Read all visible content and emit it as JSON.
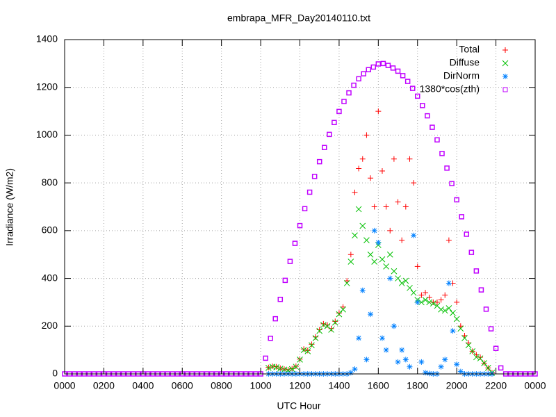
{
  "chart_data": {
    "type": "scatter",
    "title": "embrapa_MFR_Day20140110.txt",
    "xlabel": "UTC Hour",
    "ylabel": "Irradiance (W/m2)",
    "xlim": [
      0,
      24
    ],
    "xticks": [
      {
        "value": 0,
        "label": "0000"
      },
      {
        "value": 2,
        "label": "0200"
      },
      {
        "value": 4,
        "label": "0400"
      },
      {
        "value": 6,
        "label": "0600"
      },
      {
        "value": 8,
        "label": "0800"
      },
      {
        "value": 10,
        "label": "1000"
      },
      {
        "value": 12,
        "label": "1200"
      },
      {
        "value": 14,
        "label": "1400"
      },
      {
        "value": 16,
        "label": "1600"
      },
      {
        "value": 18,
        "label": "1800"
      },
      {
        "value": 20,
        "label": "2000"
      },
      {
        "value": 22,
        "label": "2200"
      },
      {
        "value": 24,
        "label": "0000"
      }
    ],
    "ylim": [
      0,
      1400
    ],
    "yticks": [
      0,
      200,
      400,
      600,
      800,
      1000,
      1200,
      1400
    ],
    "grid": true,
    "legend": "top right",
    "series": [
      {
        "name": "Total",
        "color": "#ff0000",
        "marker": "plus",
        "x": [
          10.4,
          10.6,
          10.8,
          11.0,
          11.2,
          11.4,
          11.6,
          11.8,
          12.0,
          12.2,
          12.4,
          12.6,
          12.8,
          13.0,
          13.2,
          13.4,
          13.6,
          13.8,
          14.0,
          14.2,
          14.4,
          14.6,
          14.8,
          15.0,
          15.2,
          15.4,
          15.6,
          15.8,
          16.0,
          16.2,
          16.4,
          16.6,
          16.8,
          17.0,
          17.2,
          17.4,
          17.6,
          17.8,
          18.0,
          18.2,
          18.4,
          18.6,
          18.8,
          19.0,
          19.2,
          19.4,
          19.6,
          19.8,
          20.0,
          20.2,
          20.4,
          20.6,
          20.8,
          21.0,
          21.2,
          21.4,
          21.6,
          21.8
        ],
        "values": [
          27,
          32,
          30,
          24,
          20,
          17,
          22,
          32,
          62,
          104,
          98,
          124,
          155,
          185,
          210,
          205,
          190,
          220,
          255,
          280,
          390,
          500,
          760,
          860,
          900,
          1000,
          820,
          700,
          1100,
          850,
          700,
          600,
          900,
          720,
          560,
          700,
          900,
          800,
          450,
          330,
          340,
          320,
          300,
          300,
          310,
          330,
          560,
          380,
          300,
          200,
          160,
          130,
          95,
          80,
          70,
          45,
          25,
          5
        ]
      },
      {
        "name": "Diffuse",
        "color": "#00c000",
        "marker": "cross",
        "x": [
          10.4,
          10.6,
          10.8,
          11.0,
          11.2,
          11.4,
          11.6,
          11.8,
          12.0,
          12.2,
          12.4,
          12.6,
          12.8,
          13.0,
          13.2,
          13.4,
          13.6,
          13.8,
          14.0,
          14.2,
          14.4,
          14.6,
          14.8,
          15.0,
          15.2,
          15.4,
          15.6,
          15.8,
          16.0,
          16.2,
          16.4,
          16.6,
          16.8,
          17.0,
          17.2,
          17.4,
          17.6,
          17.8,
          18.0,
          18.2,
          18.4,
          18.6,
          18.8,
          19.0,
          19.2,
          19.4,
          19.6,
          19.8,
          20.0,
          20.2,
          20.4,
          20.6,
          20.8,
          21.0,
          21.2,
          21.4,
          21.6,
          21.8
        ],
        "values": [
          25,
          30,
          28,
          22,
          18,
          15,
          20,
          30,
          60,
          100,
          95,
          120,
          150,
          180,
          205,
          200,
          185,
          215,
          250,
          270,
          380,
          470,
          580,
          690,
          620,
          560,
          500,
          470,
          540,
          480,
          450,
          500,
          430,
          400,
          380,
          390,
          360,
          340,
          310,
          300,
          310,
          300,
          295,
          285,
          270,
          265,
          275,
          255,
          230,
          190,
          150,
          120,
          95,
          70,
          65,
          45,
          25,
          5
        ]
      },
      {
        "name": "DirNorm",
        "color": "#0080ff",
        "marker": "star",
        "x": [
          10.4,
          10.6,
          10.8,
          11.0,
          11.2,
          11.4,
          11.6,
          11.8,
          12.0,
          12.2,
          12.4,
          12.6,
          12.8,
          13.0,
          13.2,
          13.4,
          13.6,
          13.8,
          14.0,
          14.2,
          14.4,
          14.6,
          14.8,
          15.0,
          15.2,
          15.4,
          15.6,
          15.8,
          16.0,
          16.2,
          16.4,
          16.6,
          16.8,
          17.0,
          17.2,
          17.4,
          17.6,
          17.8,
          18.0,
          18.2,
          18.4,
          18.6,
          18.8,
          19.0,
          19.2,
          19.4,
          19.6,
          19.8,
          20.0,
          20.2,
          20.4,
          20.6,
          20.8,
          21.0,
          21.2,
          21.4,
          21.6,
          21.8
        ],
        "values": [
          0,
          0,
          0,
          0,
          0,
          0,
          0,
          0,
          0,
          0,
          0,
          0,
          0,
          0,
          0,
          0,
          0,
          0,
          0,
          0,
          0,
          5,
          20,
          150,
          350,
          60,
          250,
          600,
          550,
          150,
          100,
          400,
          200,
          50,
          100,
          60,
          30,
          580,
          300,
          50,
          5,
          2,
          0,
          0,
          30,
          60,
          380,
          180,
          40,
          10,
          0,
          0,
          0,
          0,
          0,
          0,
          0,
          0
        ]
      },
      {
        "name": "1380*cos(zth)",
        "color": "#c000ff",
        "marker": "square",
        "x": [
          0,
          0.25,
          0.5,
          0.75,
          1,
          1.25,
          1.5,
          1.75,
          2,
          2.25,
          2.5,
          2.75,
          3,
          3.25,
          3.5,
          3.75,
          4,
          4.25,
          4.5,
          4.75,
          5,
          5.25,
          5.5,
          5.75,
          6,
          6.25,
          6.5,
          6.75,
          7,
          7.25,
          7.5,
          7.75,
          8,
          8.25,
          8.5,
          8.75,
          9,
          9.25,
          9.5,
          9.75,
          10,
          10.25,
          10.5,
          10.75,
          11,
          11.25,
          11.5,
          11.75,
          12,
          12.25,
          12.5,
          12.75,
          13,
          13.25,
          13.5,
          13.75,
          14,
          14.25,
          14.5,
          14.75,
          15,
          15.25,
          15.5,
          15.75,
          16,
          16.25,
          16.5,
          16.75,
          17,
          17.25,
          17.5,
          17.75,
          18,
          18.25,
          18.5,
          18.75,
          19,
          19.25,
          19.5,
          19.75,
          20,
          20.25,
          20.5,
          20.75,
          21,
          21.25,
          21.5,
          21.75,
          22,
          22.25,
          22.5,
          22.75,
          23,
          23.25,
          23.5,
          23.75,
          24
        ],
        "values": [
          0,
          0,
          0,
          0,
          0,
          0,
          0,
          0,
          0,
          0,
          0,
          0,
          0,
          0,
          0,
          0,
          0,
          0,
          0,
          0,
          0,
          0,
          0,
          0,
          0,
          0,
          0,
          0,
          0,
          0,
          0,
          0,
          0,
          0,
          0,
          0,
          0,
          0,
          0,
          0,
          0,
          66,
          149,
          231,
          312,
          392,
          471,
          547,
          621,
          692,
          761,
          827,
          889,
          948,
          1003,
          1053,
          1099,
          1141,
          1177,
          1209,
          1236,
          1257,
          1274,
          1285,
          1298,
          1300,
          1292,
          1281,
          1268,
          1249,
          1225,
          1196,
          1163,
          1124,
          1081,
          1033,
          980,
          923,
          862,
          797,
          729,
          658,
          585,
          509,
          431,
          352,
          271,
          189,
          107,
          25,
          0,
          0,
          0,
          0,
          0,
          0,
          0
        ]
      }
    ]
  }
}
